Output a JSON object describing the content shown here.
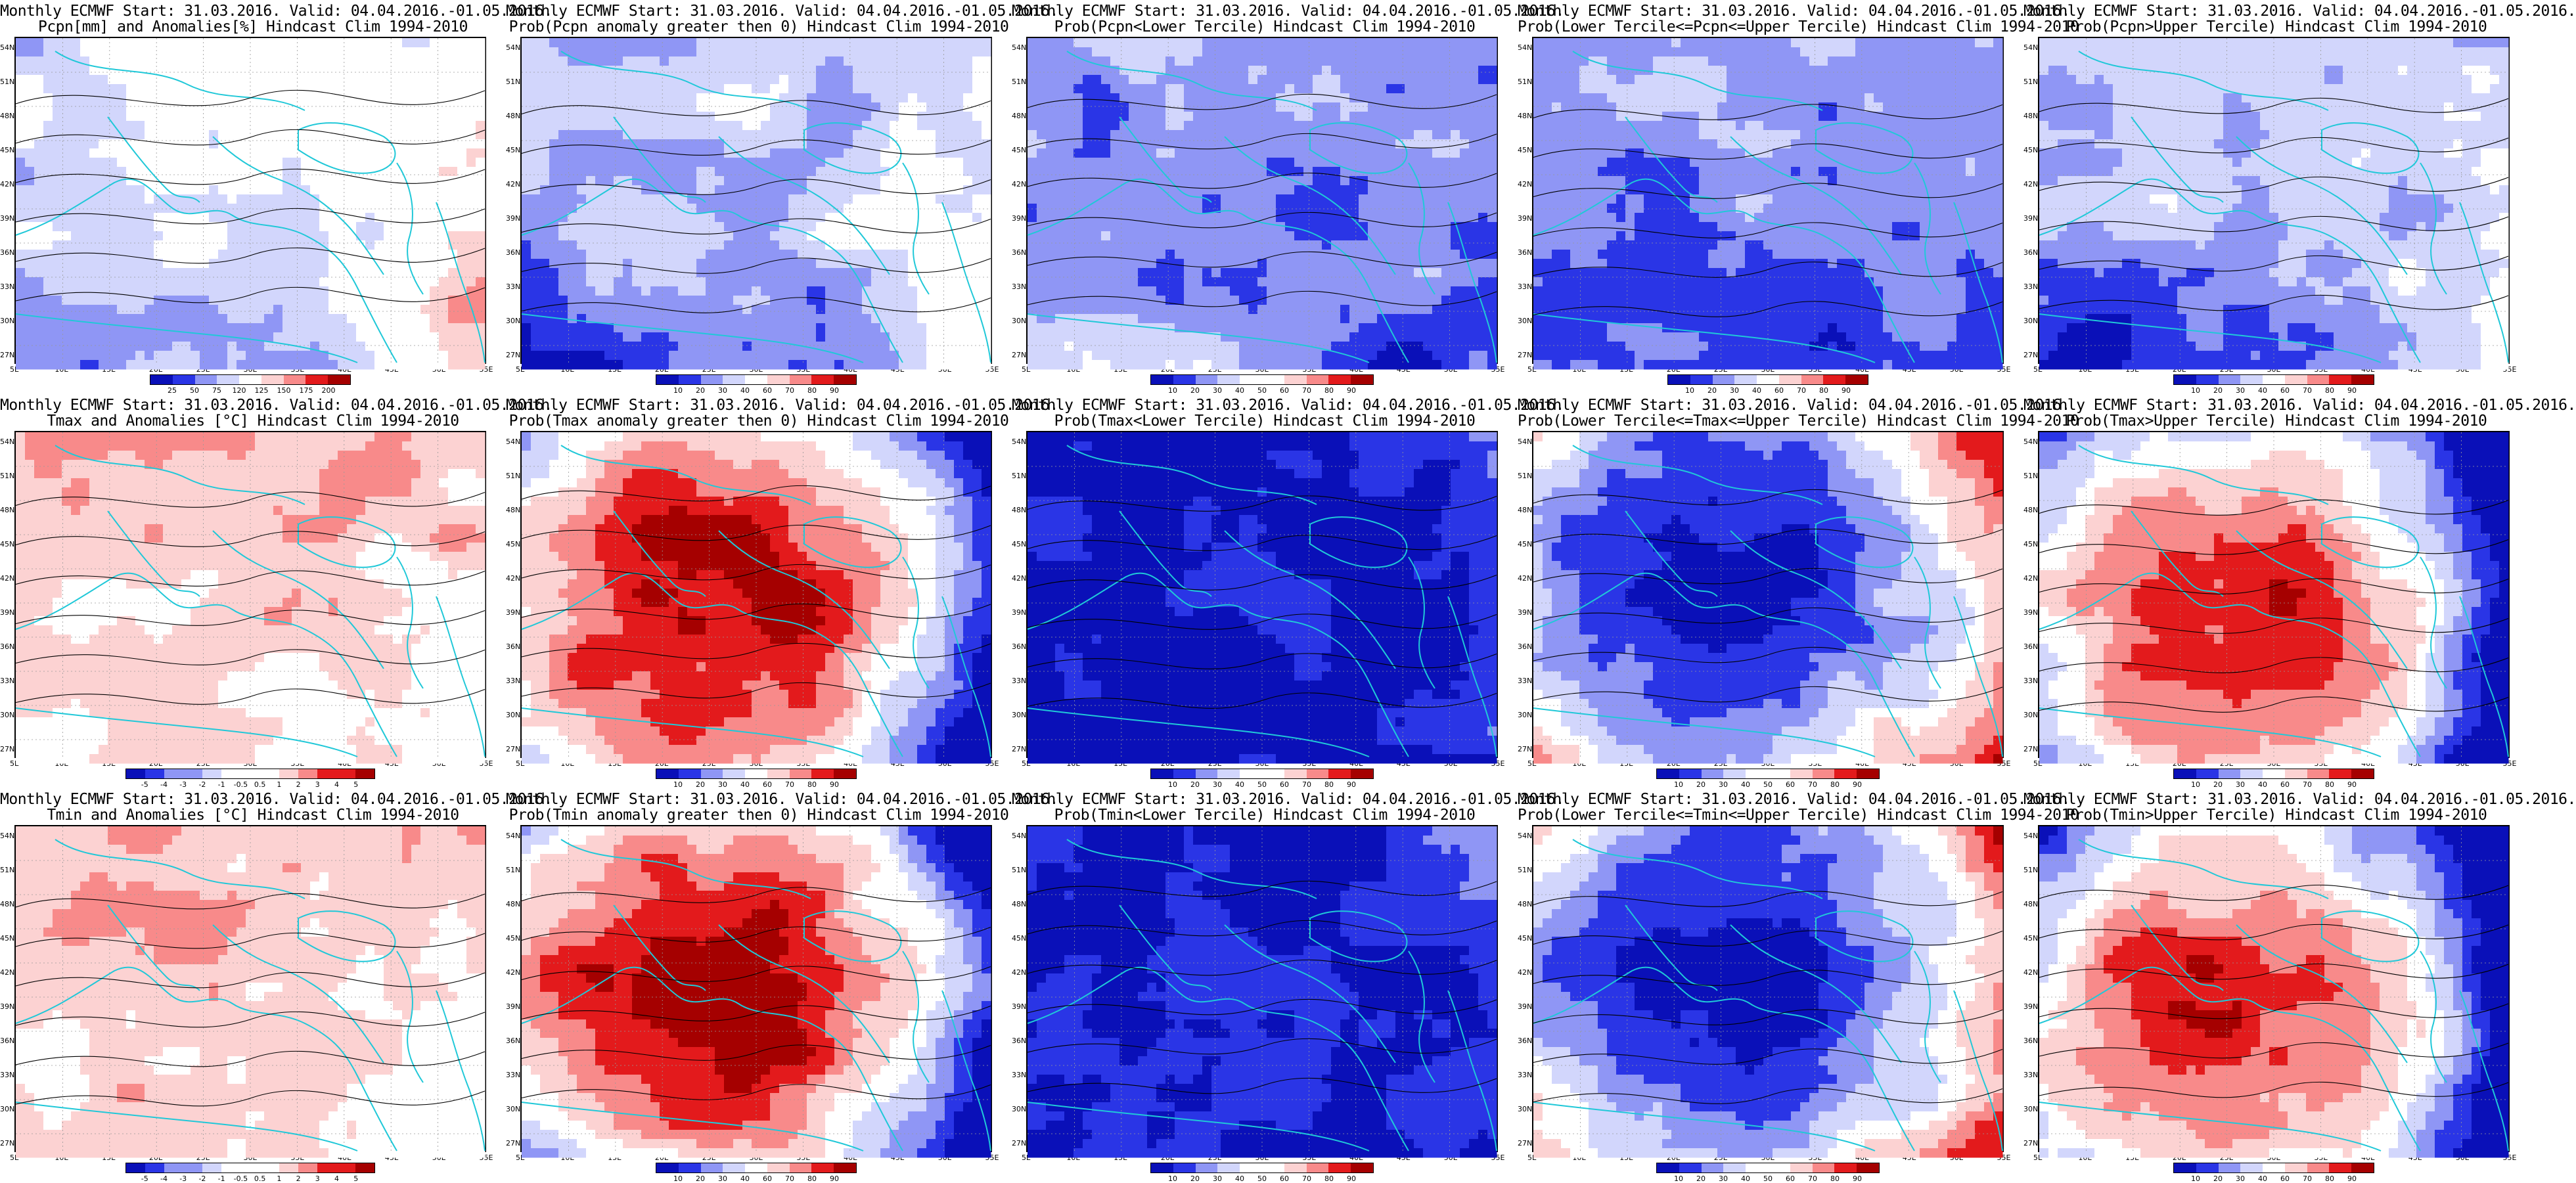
{
  "page": {
    "rows": [
      {
        "panels": [
          {
            "title1": "Monthly ECMWF Start: 31.03.2016. Valid: 04.04.2016.-01.05.2016.",
            "title2": "Pcpn[mm] and Anomalies[%] Hindcast Clim 1994-2010",
            "palette": "anom",
            "scheme": "pcpn_anom",
            "cbar": [
              "25",
              "50",
              "75",
              "120",
              "125",
              "150",
              "175",
              "200"
            ]
          },
          {
            "title1": "Monthly ECMWF Start: 31.03.2016. Valid: 04.04.2016.-01.05.2016.",
            "title2": "Prob(Pcpn anomaly greater then 0) Hindcast Clim 1994-2010",
            "palette": "prob",
            "scheme": "pcpn_pos",
            "cbar": [
              "10",
              "20",
              "30",
              "40",
              "60",
              "70",
              "80",
              "90"
            ]
          },
          {
            "title1": "Monthly ECMWF Start: 31.03.2016. Valid: 04.04.2016.-01.05.2016.",
            "title2": "Prob(Pcpn<Lower Tercile) Hindcast Clim 1994-2010",
            "palette": "prob",
            "scheme": "pcpn_low",
            "cbar": [
              "10",
              "20",
              "30",
              "40",
              "50",
              "60",
              "70",
              "80",
              "90"
            ]
          },
          {
            "title1": "Monthly ECMWF Start: 31.03.2016. Valid: 04.04.2016.-01.05.2016.",
            "title2": "Prob(Lower Tercile<=Pcpn<=Upper Tercile) Hindcast Clim 1994-2010",
            "palette": "prob",
            "scheme": "mid",
            "cbar": [
              "10",
              "20",
              "30",
              "40",
              "60",
              "70",
              "80",
              "90"
            ]
          },
          {
            "title1": "Monthly ECMWF Start: 31.03.2016. Valid: 04.04.2016.-01.05.2016.",
            "title2": "Prob(Pcpn>Upper Tercile) Hindcast Clim 1994-2010",
            "palette": "prob",
            "scheme": "pcpn_pos",
            "cbar": [
              "10",
              "20",
              "30",
              "40",
              "60",
              "70",
              "80",
              "90"
            ]
          }
        ]
      },
      {
        "panels": [
          {
            "title1": "Monthly ECMWF Start: 31.03.2016. Valid: 04.04.2016.-01.05.2016.",
            "title2": "Tmax and Anomalies [°C] Hindcast Clim 1994-2010",
            "palette": "anom",
            "scheme": "temp_anom",
            "cbar": [
              "-5",
              "-4",
              "-3",
              "-2",
              "-1",
              "-0.5",
              "0.5",
              "1",
              "2",
              "3",
              "4",
              "5"
            ]
          },
          {
            "title1": "Monthly ECMWF Start: 31.03.2016. Valid: 04.04.2016.-01.05.2016.",
            "title2": "Prob(Tmax anomaly greater then 0) Hindcast Clim 1994-2010",
            "palette": "prob",
            "scheme": "warm",
            "cbar": [
              "10",
              "20",
              "30",
              "40",
              "60",
              "70",
              "80",
              "90"
            ]
          },
          {
            "title1": "Monthly ECMWF Start: 31.03.2016. Valid: 04.04.2016.-01.05.2016.",
            "title2": "Prob(Tmax<Lower Tercile) Hindcast Clim 1994-2010",
            "palette": "prob",
            "scheme": "cold",
            "cbar": [
              "10",
              "20",
              "30",
              "40",
              "50",
              "60",
              "70",
              "80",
              "90"
            ]
          },
          {
            "title1": "Monthly ECMWF Start: 31.03.2016. Valid: 04.04.2016.-01.05.2016.",
            "title2": "Prob(Lower Tercile<=Tmax<=Upper Tercile) Hindcast Clim 1994-2010",
            "palette": "prob",
            "scheme": "midcold",
            "cbar": [
              "10",
              "20",
              "30",
              "40",
              "50",
              "60",
              "70",
              "80",
              "90"
            ]
          },
          {
            "title1": "Monthly ECMWF Start: 31.03.2016. Valid: 04.04.2016.-01.05.2016.",
            "title2": "Prob(Tmax>Upper Tercile) Hindcast Clim 1994-2010",
            "palette": "prob",
            "scheme": "upper",
            "cbar": [
              "10",
              "20",
              "30",
              "40",
              "60",
              "70",
              "80",
              "90"
            ]
          }
        ]
      },
      {
        "panels": [
          {
            "title1": "Monthly ECMWF Start: 31.03.2016. Valid: 04.04.2016.-01.05.2016.",
            "title2": "Tmin and Anomalies [°C] Hindcast Clim 1994-2010",
            "palette": "anom",
            "scheme": "temp_anom",
            "cbar": [
              "-5",
              "-4",
              "-3",
              "-2",
              "-1",
              "-0.5",
              "0.5",
              "1",
              "2",
              "3",
              "4",
              "5"
            ]
          },
          {
            "title1": "Monthly ECMWF Start: 31.03.2016. Valid: 04.04.2016.-01.05.2016.",
            "title2": "Prob(Tmin anomaly greater then 0) Hindcast Clim 1994-2010",
            "palette": "prob",
            "scheme": "warm",
            "cbar": [
              "10",
              "20",
              "30",
              "40",
              "60",
              "70",
              "80",
              "90"
            ]
          },
          {
            "title1": "Monthly ECMWF Start: 31.03.2016. Valid: 04.04.2016.-01.05.2016.",
            "title2": "Prob(Tmin<Lower Tercile) Hindcast Clim 1994-2010",
            "palette": "prob",
            "scheme": "cold",
            "cbar": [
              "10",
              "20",
              "30",
              "40",
              "50",
              "60",
              "70",
              "80",
              "90"
            ]
          },
          {
            "title1": "Monthly ECMWF Start: 31.03.2016. Valid: 04.04.2016.-01.05.2016.",
            "title2": "Prob(Lower Tercile<=Tmin<=Upper Tercile) Hindcast Clim 1994-2010",
            "palette": "prob",
            "scheme": "midcold",
            "cbar": [
              "10",
              "20",
              "30",
              "40",
              "50",
              "60",
              "70",
              "80",
              "90"
            ]
          },
          {
            "title1": "Monthly ECMWF Start: 31.03.2016. Valid: 04.04.2016.-01.05.2016.",
            "title2": "Prob(Tmin>Upper Tercile) Hindcast Clim 1994-2010",
            "palette": "prob",
            "scheme": "upper",
            "cbar": [
              "10",
              "20",
              "30",
              "40",
              "60",
              "70",
              "80",
              "90"
            ]
          }
        ]
      }
    ],
    "lat_labels": [
      "54N",
      "51N",
      "48N",
      "45N",
      "42N",
      "39N",
      "36N",
      "33N",
      "30N",
      "27N"
    ],
    "lon_labels": [
      "5E",
      "10E",
      "15E",
      "20E",
      "25E",
      "30E",
      "35E",
      "40E",
      "45E",
      "50E",
      "55E"
    ],
    "colors": {
      "deep_red": "#a50000",
      "red": "#e31a1c",
      "light_red": "#f88a8a",
      "pale_red": "#fcd2d2",
      "white": "#ffffff",
      "pale_blue": "#d2d6fc",
      "light_blue": "#8f96f5",
      "blue": "#2a35e6",
      "deep_blue": "#0a10b8",
      "coast": "#20c8d8",
      "contour": "#000000"
    }
  }
}
